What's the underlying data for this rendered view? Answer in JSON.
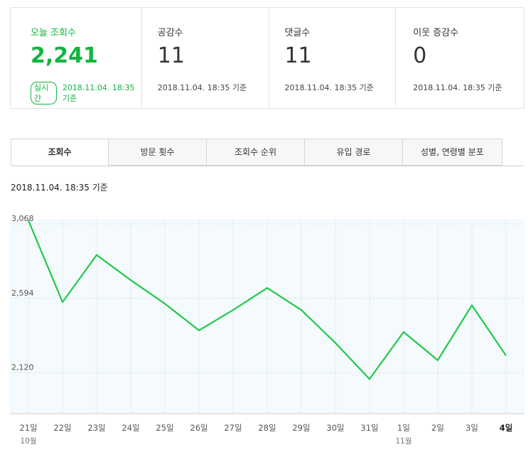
{
  "stats": [
    {
      "label": "오늘 조회수",
      "value": "2,241",
      "badge": "실시간",
      "time": "2018.11.04. 18:35 기준"
    },
    {
      "label": "공감수",
      "value": "11",
      "time": "2018.11.04. 18:35 기준"
    },
    {
      "label": "댓글수",
      "value": "11",
      "time": "2018.11.04. 18:35 기준"
    },
    {
      "label": "이웃 증감수",
      "value": "0",
      "time": "2018.11.04. 18:35 기준"
    }
  ],
  "tabs": [
    "조회수",
    "방문 횟수",
    "조회수 순위",
    "유입 경로",
    "성별, 연령별 분포"
  ],
  "asof": "2018.11.04. 18:35 기준",
  "colors": {
    "accent": "#12b53e",
    "line": "#21c94a"
  },
  "chart_data": {
    "type": "line",
    "x": [
      "21일",
      "22일",
      "23일",
      "24일",
      "25일",
      "26일",
      "27일",
      "28일",
      "29일",
      "30일",
      "31일",
      "1일",
      "2일",
      "3일",
      "4일"
    ],
    "month_labels": [
      {
        "at": "21일",
        "label": "10월"
      },
      {
        "at": "1일",
        "label": "11월"
      }
    ],
    "series": [
      {
        "values": [
          3090,
          2570,
          2870,
          2710,
          2560,
          2390,
          2520,
          2660,
          2520,
          2310,
          2080,
          2380,
          2200,
          2550,
          2230
        ]
      }
    ],
    "yticks": [
      3068,
      2594,
      2120
    ],
    "ylim": [
      1860,
      3100
    ],
    "grid": true
  }
}
